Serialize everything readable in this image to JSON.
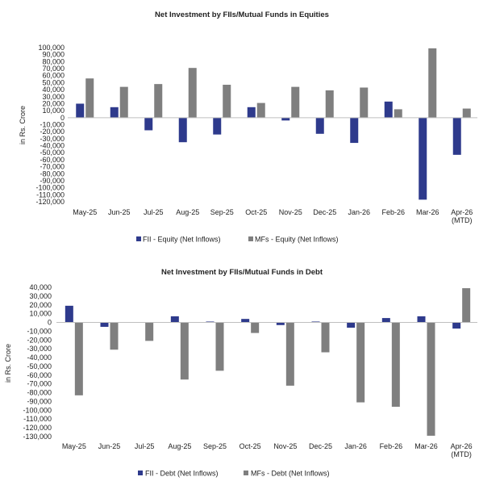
{
  "colors": {
    "fii": "#2e3a8c",
    "mf": "#7f7f7f",
    "axis": "#bfbfbf"
  },
  "chart_data": [
    {
      "type": "bar",
      "title": "Net Investment by FIIs/Mutual Funds in Equities",
      "ylabel": "in Rs. Crore",
      "categories": [
        "May-25",
        "Jun-25",
        "Jul-25",
        "Aug-25",
        "Sep-25",
        "Oct-25",
        "Nov-25",
        "Dec-25",
        "Jan-26",
        "Feb-26",
        "Mar-26",
        "Apr-26\n(MTD)"
      ],
      "series": [
        {
          "name": "FII - Equity (Net Inflows)",
          "values": [
            20000,
            15000,
            -18000,
            -35000,
            -24000,
            15000,
            -4000,
            -23000,
            -36000,
            23000,
            -117000,
            -53000
          ]
        },
        {
          "name": "MFs - Equity (Net Inflows)",
          "values": [
            56000,
            44000,
            48000,
            71000,
            47000,
            21000,
            44000,
            39000,
            43000,
            12000,
            99000,
            13000
          ]
        }
      ],
      "ylim": [
        -120000,
        100000
      ],
      "ytick_step": 10000,
      "yticks": [
        "100,000",
        "90,000",
        "80,000",
        "70,000",
        "60,000",
        "50,000",
        "40,000",
        "30,000",
        "20,000",
        "10,000",
        "0",
        "-10,000",
        "-20,000",
        "-30,000",
        "-40,000",
        "-50,000",
        "-60,000",
        "-70,000",
        "-80,000",
        "-90,000",
        "-100,000",
        "-110,000",
        "-120,000"
      ],
      "grid": false,
      "legend": "bottom"
    },
    {
      "type": "bar",
      "title": "Net Investment by FIIs/Mutual Funds in Debt",
      "ylabel": "in Rs. Crore",
      "categories": [
        "May-25",
        "Jun-25",
        "Jul-25",
        "Aug-25",
        "Sep-25",
        "Oct-25",
        "Nov-25",
        "Dec-25",
        "Jan-26",
        "Feb-26",
        "Mar-26",
        "Apr-26\n(MTD)"
      ],
      "series": [
        {
          "name": "FII - Debt (Net Inflows)",
          "values": [
            19000,
            -5000,
            0,
            7000,
            1000,
            4000,
            -3000,
            1000,
            -6000,
            5000,
            7000,
            -7000
          ]
        },
        {
          "name": "MFs - Debt (Net Inflows)",
          "values": [
            -83000,
            -31000,
            -21000,
            -65000,
            -55000,
            -12000,
            -72000,
            -34000,
            -91000,
            -96000,
            -129000,
            39000
          ]
        }
      ],
      "ylim": [
        -130000,
        40000
      ],
      "ytick_step": 10000,
      "yticks": [
        "40,000",
        "30,000",
        "20,000",
        "10,000",
        "0",
        "-10,000",
        "-20,000",
        "-30,000",
        "-40,000",
        "-50,000",
        "-60,000",
        "-70,000",
        "-80,000",
        "-90,000",
        "-100,000",
        "-110,000",
        "-120,000",
        "-130,000"
      ],
      "grid": false,
      "legend": "bottom"
    }
  ]
}
